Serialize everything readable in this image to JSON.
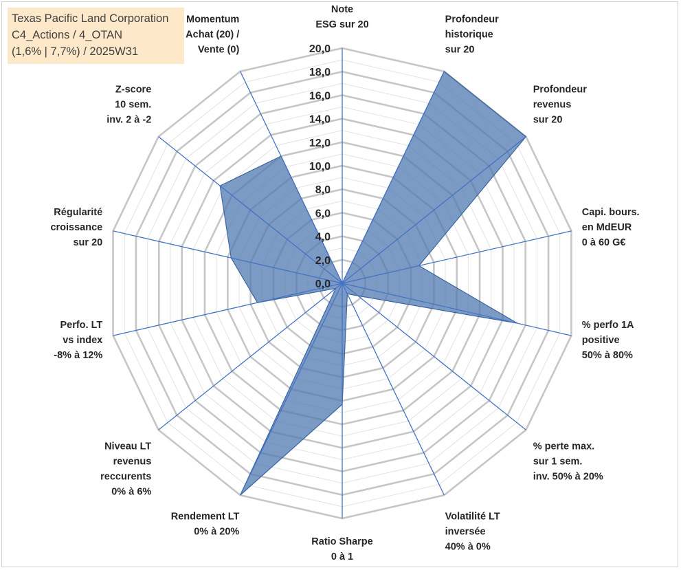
{
  "title_box": {
    "line1": "Texas Pacific Land Corporation",
    "line2": "C4_Actions / 4_OTAN",
    "line3": "(1,6% | 7,7%) / 2025W31"
  },
  "chart_data": {
    "type": "radar",
    "rmin": 0,
    "rmax": 20,
    "tick_step": 2,
    "ticks": [
      "0,0",
      "2,0",
      "4,0",
      "6,0",
      "8,0",
      "10,0",
      "12,0",
      "14,0",
      "16,0",
      "18,0",
      "20,0"
    ],
    "grid": true,
    "axes": [
      {
        "label": [
          "Note",
          "ESG sur 20"
        ],
        "value": 0
      },
      {
        "label": [
          "Profondeur",
          "historique",
          "sur 20"
        ],
        "value": 20
      },
      {
        "label": [
          "Profondeur",
          "revenus",
          "sur 20"
        ],
        "value": 20
      },
      {
        "label": [
          "Capi. bours.",
          "en MdEUR",
          "0 à 60 G€"
        ],
        "value": 6.7
      },
      {
        "label": [
          "% perfo 1A",
          "positive",
          "50% à 80%"
        ],
        "value": 15.3
      },
      {
        "label": [
          "% perte max.",
          "sur 1 sem.",
          "inv. 50% à 20%"
        ],
        "value": 1.7
      },
      {
        "label": [
          "Volatilité LT",
          "inversée",
          "40% à 0%"
        ],
        "value": 1.0
      },
      {
        "label": [
          "Ratio Sharpe",
          "0 à 1"
        ],
        "value": 10.3
      },
      {
        "label": [
          "Rendement LT",
          "0% à 20%"
        ],
        "value": 20
      },
      {
        "label": [
          "Niveau LT",
          "revenus",
          "reccurents",
          "0% à 6%"
        ],
        "value": 0.7
      },
      {
        "label": [
          "Perfo. LT",
          "vs index",
          "-8% à 12%"
        ],
        "value": 7.4
      },
      {
        "label": [
          "Régularité",
          "croissance",
          "sur 20"
        ],
        "value": 9.7
      },
      {
        "label": [
          "Z-score",
          "10 sem.",
          "inv. 2 à -2"
        ],
        "value": 13.3
      },
      {
        "label": [
          "Momentum",
          "Achat (20) /",
          "Vente (0)"
        ],
        "value": 12.0
      }
    ],
    "colors": {
      "fill": "#4f79b0",
      "edge": "#3a64a2",
      "spoke": "#4472c4",
      "ring_major": "#c6c6c6",
      "ring_minor": "#e2e2e2"
    }
  }
}
